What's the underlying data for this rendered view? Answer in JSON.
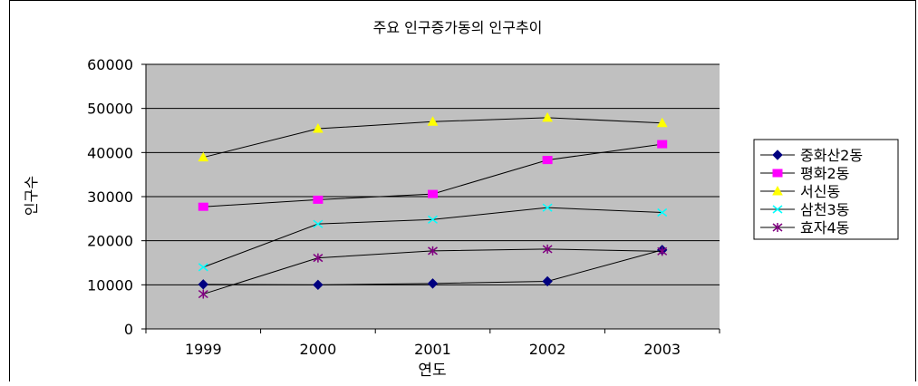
{
  "chart_data": {
    "type": "line",
    "title": "주요 인구증가동의 인구추이",
    "xlabel": "연도",
    "ylabel": "인구수",
    "categories": [
      "1999",
      "2000",
      "2001",
      "2002",
      "2003"
    ],
    "ylim": [
      0,
      60000
    ],
    "yticks": [
      "0",
      "10000",
      "20000",
      "30000",
      "40000",
      "50000",
      "60000"
    ],
    "grid": "horizontal",
    "legend": "right",
    "plot_background": "#C0C0C0",
    "series": [
      {
        "name": "중화산2동",
        "values": [
          10100,
          10000,
          10300,
          10800,
          17900
        ],
        "color": "#000080",
        "marker": "diamond"
      },
      {
        "name": "평화2동",
        "values": [
          27700,
          29300,
          30600,
          38300,
          41900
        ],
        "color": "#FF00FF",
        "marker": "square"
      },
      {
        "name": "서신동",
        "values": [
          38900,
          45400,
          47000,
          47900,
          46700
        ],
        "color": "#FFFF00",
        "marker": "triangle"
      },
      {
        "name": "삼천3동",
        "values": [
          14000,
          23800,
          24800,
          27500,
          26400
        ],
        "color": "#00FFFF",
        "marker": "x"
      },
      {
        "name": "효자4동",
        "values": [
          7900,
          16100,
          17700,
          18100,
          17600
        ],
        "color": "#800080",
        "marker": "star"
      }
    ]
  }
}
